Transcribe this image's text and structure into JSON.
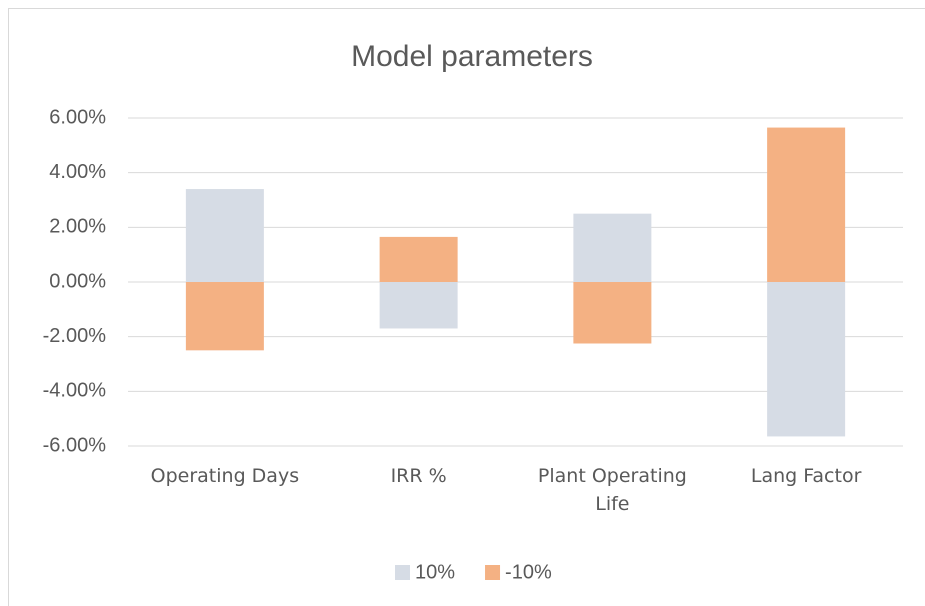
{
  "chart_data": {
    "type": "bar",
    "title": "Model parameters",
    "categories": [
      "Operating Days",
      "IRR %",
      "Plant Operating Life",
      "Lang Factor"
    ],
    "series": [
      {
        "name": "10%",
        "color": "#d6dce5",
        "values": [
          3.4,
          -1.7,
          2.5,
          -5.65
        ]
      },
      {
        "name": "-10%",
        "color": "#f4b183",
        "values": [
          -2.5,
          1.65,
          -2.25,
          5.65
        ]
      }
    ],
    "ylim": [
      -6,
      6
    ],
    "yticks": [
      {
        "value": -6,
        "label": "-6.00%"
      },
      {
        "value": -4,
        "label": "-4.00%"
      },
      {
        "value": -2,
        "label": "-2.00%"
      },
      {
        "value": 0,
        "label": "0.00%"
      },
      {
        "value": 2,
        "label": "2.00%"
      },
      {
        "value": 4,
        "label": "4.00%"
      },
      {
        "value": 6,
        "label": "6.00%"
      }
    ],
    "grid": true,
    "legend": "bottom"
  }
}
